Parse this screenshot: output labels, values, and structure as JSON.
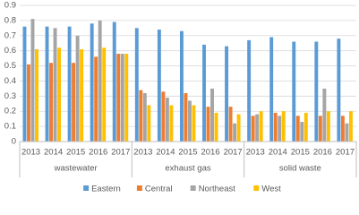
{
  "chart_data": {
    "type": "bar",
    "groups": [
      {
        "name": "wastewater",
        "categories": [
          "2013",
          "2014",
          "2015",
          "2016",
          "2017"
        ]
      },
      {
        "name": "exhaust gas",
        "categories": [
          "2013",
          "2014",
          "2015",
          "2016",
          "2017"
        ]
      },
      {
        "name": "solid waste",
        "categories": [
          "2013",
          "2014",
          "2015",
          "2016",
          "2017"
        ]
      }
    ],
    "series": [
      {
        "name": "Eastern",
        "color": "#5b9bd5",
        "values": [
          0.76,
          0.76,
          0.76,
          0.78,
          0.79,
          0.75,
          0.74,
          0.73,
          0.64,
          0.63,
          0.67,
          0.69,
          0.66,
          0.66,
          0.68
        ]
      },
      {
        "name": "Central",
        "color": "#ed7d31",
        "values": [
          0.51,
          0.52,
          0.52,
          0.56,
          0.58,
          0.34,
          0.33,
          0.32,
          0.23,
          0.23,
          0.17,
          0.19,
          0.17,
          0.17,
          0.17
        ]
      },
      {
        "name": "Northeast",
        "color": "#a5a5a5",
        "values": [
          0.81,
          0.75,
          0.7,
          0.8,
          0.58,
          0.32,
          0.29,
          0.27,
          0.35,
          0.12,
          0.18,
          0.17,
          0.13,
          0.35,
          0.12
        ]
      },
      {
        "name": "West",
        "color": "#ffc000",
        "values": [
          0.61,
          0.62,
          0.61,
          0.62,
          0.58,
          0.24,
          0.24,
          0.24,
          0.19,
          0.18,
          0.2,
          0.2,
          0.19,
          0.2,
          0.2
        ]
      }
    ],
    "ylim": [
      0,
      0.9
    ],
    "yticks": [
      0,
      0.1,
      0.2,
      0.3,
      0.4,
      0.5,
      0.6,
      0.7,
      0.8,
      0.9
    ],
    "grid": true,
    "legend": "bottom"
  }
}
